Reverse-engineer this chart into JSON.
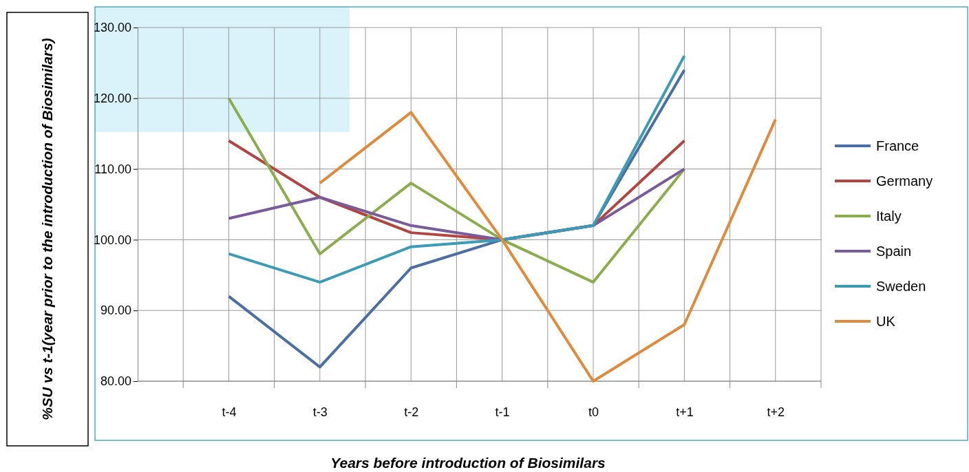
{
  "chart_data": {
    "type": "line",
    "xlabel": "Years before introduction of Biosimilars",
    "ylabel": "%SU vs t-1(year prior to the introduction of Biosimilars)",
    "categories": [
      "t-4",
      "t-3",
      "t-2",
      "t-1",
      "t0",
      "t+1",
      "t+2"
    ],
    "ylim": [
      80,
      130
    ],
    "yticks": [
      {
        "value": 80,
        "label": "80.00"
      },
      {
        "value": 90,
        "label": "90.00"
      },
      {
        "value": 100,
        "label": "100.00"
      },
      {
        "value": 110,
        "label": "110.00"
      },
      {
        "value": 120,
        "label": "120.00"
      },
      {
        "value": 130,
        "label": "130.00"
      }
    ],
    "grid": true,
    "legend": "right",
    "marker": "none",
    "line_style": "solid",
    "series": [
      {
        "name": "France",
        "color": "#4a6fa5",
        "values": [
          92,
          82,
          96,
          100,
          102,
          124,
          null
        ]
      },
      {
        "name": "Germany",
        "color": "#b3443f",
        "values": [
          114,
          106,
          101,
          100,
          102,
          114,
          null
        ]
      },
      {
        "name": "Italy",
        "color": "#8cad4d",
        "values": [
          120,
          98,
          108,
          100,
          94,
          110,
          null
        ]
      },
      {
        "name": "Spain",
        "color": "#7a5a9a",
        "values": [
          103,
          106,
          102,
          100,
          102,
          110,
          null
        ]
      },
      {
        "name": "Sweden",
        "color": "#3c9bb5",
        "values": [
          98,
          94,
          99,
          100,
          102,
          126,
          null
        ]
      },
      {
        "name": "UK",
        "color": "#e08a3c",
        "values": [
          null,
          108,
          118,
          100,
          80,
          88,
          117
        ]
      }
    ]
  }
}
